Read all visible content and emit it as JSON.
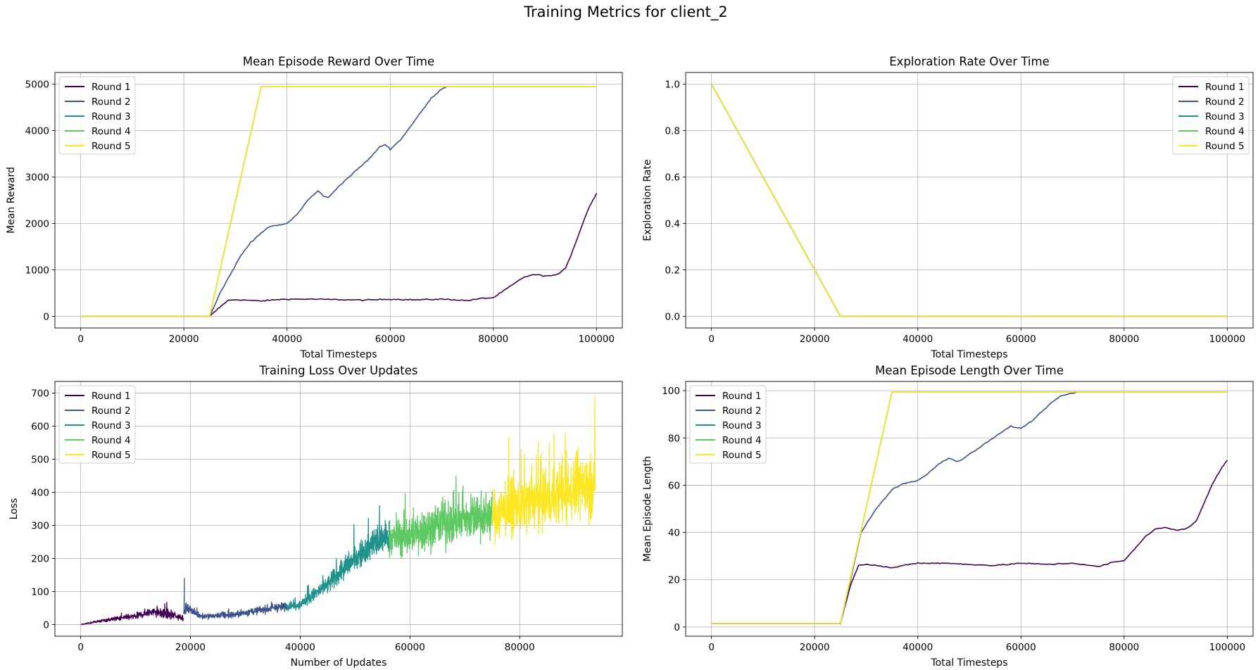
{
  "suptitle": "Training Metrics for client_2",
  "colors": {
    "round_1": "#440154",
    "round_2": "#3b528b",
    "round_3": "#21918c",
    "round_4": "#5ec962",
    "round_5": "#fde725"
  },
  "chart_data": [
    {
      "type": "line",
      "title": "Mean Episode Reward Over Time",
      "xlabel": "Total Timesteps",
      "ylabel": "Mean Reward",
      "xlim": [
        -5000,
        105000
      ],
      "ylim": [
        -250,
        5250
      ],
      "xticks": [
        0,
        20000,
        40000,
        60000,
        80000,
        100000
      ],
      "yticks": [
        0,
        1000,
        2000,
        3000,
        4000,
        5000
      ],
      "grid": true,
      "legend": "upper-left",
      "series": [
        {
          "name": "Round 1",
          "x": [
            0,
            25000,
            27000,
            28500,
            30000,
            32000,
            35000,
            38000,
            40000,
            45000,
            50000,
            55000,
            60000,
            65000,
            70000,
            72000,
            75000,
            78000,
            80000,
            82000,
            84000,
            86000,
            88000,
            90000,
            92000,
            93000,
            94000,
            95000,
            96000,
            97000,
            98000,
            99000,
            100000
          ],
          "y": [
            0,
            0,
            200,
            340,
            360,
            350,
            330,
            360,
            370,
            370,
            360,
            350,
            370,
            355,
            370,
            360,
            340,
            390,
            400,
            550,
            700,
            850,
            900,
            870,
            880,
            950,
            1050,
            1300,
            1600,
            1900,
            2200,
            2450,
            2650
          ]
        },
        {
          "name": "Round 2",
          "x": [
            0,
            25000,
            27000,
            29000,
            31000,
            33000,
            35000,
            37000,
            38000,
            40000,
            42000,
            44000,
            46000,
            47000,
            48000,
            50000,
            52000,
            54000,
            56000,
            58000,
            59000,
            60000,
            62000,
            64000,
            66000,
            68000,
            70000,
            71000,
            100000
          ],
          "y": [
            0,
            0,
            500,
            900,
            1300,
            1600,
            1800,
            1950,
            1950,
            2000,
            2200,
            2500,
            2700,
            2600,
            2550,
            2800,
            3000,
            3200,
            3400,
            3650,
            3700,
            3600,
            3800,
            4100,
            4400,
            4700,
            4900,
            4950,
            4950
          ]
        },
        {
          "name": "Round 3",
          "x": [
            0,
            25000,
            35000,
            100000
          ],
          "y": [
            0,
            0,
            4950,
            4950
          ]
        },
        {
          "name": "Round 4",
          "x": [
            0,
            25000,
            35000,
            100000
          ],
          "y": [
            0,
            0,
            4950,
            4950
          ]
        },
        {
          "name": "Round 5",
          "x": [
            0,
            25000,
            35000,
            100000
          ],
          "y": [
            0,
            0,
            4950,
            4950
          ]
        }
      ]
    },
    {
      "type": "line",
      "title": "Exploration Rate Over Time",
      "xlabel": "Total Timesteps",
      "ylabel": "Exploration Rate",
      "xlim": [
        -5000,
        105000
      ],
      "ylim": [
        -0.05,
        1.05
      ],
      "xticks": [
        0,
        20000,
        40000,
        60000,
        80000,
        100000
      ],
      "yticks": [
        0.0,
        0.2,
        0.4,
        0.6,
        0.8,
        1.0
      ],
      "ytick_labels": [
        "0.0",
        "0.2",
        "0.4",
        "0.6",
        "0.8",
        "1.0"
      ],
      "grid": true,
      "legend": "upper-right",
      "series": [
        {
          "name": "Round 1",
          "x": [
            0,
            25000,
            100000
          ],
          "y": [
            1.0,
            0.0,
            0.0
          ]
        },
        {
          "name": "Round 2",
          "x": [
            0,
            25000,
            100000
          ],
          "y": [
            1.0,
            0.0,
            0.0
          ]
        },
        {
          "name": "Round 3",
          "x": [
            0,
            25000,
            100000
          ],
          "y": [
            1.0,
            0.0,
            0.0
          ]
        },
        {
          "name": "Round 4",
          "x": [
            0,
            25000,
            100000
          ],
          "y": [
            1.0,
            0.0,
            0.0
          ]
        },
        {
          "name": "Round 5",
          "x": [
            0,
            25000,
            100000
          ],
          "y": [
            1.0,
            0.0,
            0.0
          ]
        }
      ]
    },
    {
      "type": "line",
      "title": "Training Loss Over Updates",
      "xlabel": "Number of Updates",
      "ylabel": "Loss",
      "xlim": [
        -4700,
        98700
      ],
      "ylim": [
        -35,
        735
      ],
      "xticks": [
        0,
        20000,
        40000,
        60000,
        80000
      ],
      "yticks": [
        0,
        100,
        200,
        300,
        400,
        500,
        600,
        700
      ],
      "grid": true,
      "legend": "upper-left",
      "series": [
        {
          "name": "Round 1",
          "x_range": [
            0,
            18750
          ],
          "noise": [
            [
              0,
              0,
              1
            ],
            [
              5000,
              15,
              10
            ],
            [
              10000,
              25,
              15
            ],
            [
              13000,
              40,
              25
            ],
            [
              16000,
              30,
              25
            ],
            [
              18750,
              22,
              15
            ]
          ]
        },
        {
          "name": "Round 2",
          "x_range": [
            18750,
            37500
          ],
          "noise": [
            [
              18750,
              30,
              20
            ],
            [
              19200,
              50,
              25
            ],
            [
              22000,
              25,
              15
            ],
            [
              28000,
              30,
              18
            ],
            [
              33000,
              45,
              20
            ],
            [
              37500,
              55,
              25
            ]
          ]
        },
        {
          "name": "Round 3",
          "x_range": [
            37500,
            56250
          ],
          "noise": [
            [
              37500,
              55,
              20
            ],
            [
              40000,
              60,
              25
            ],
            [
              45000,
              120,
              50
            ],
            [
              50000,
              200,
              70
            ],
            [
              53000,
              240,
              80
            ],
            [
              56250,
              270,
              90
            ]
          ]
        },
        {
          "name": "Round 4",
          "x_range": [
            56250,
            75000
          ],
          "noise": [
            [
              56250,
              260,
              100
            ],
            [
              60000,
              270,
              110
            ],
            [
              65000,
              300,
              120
            ],
            [
              70000,
              320,
              120
            ],
            [
              75000,
              330,
              120
            ]
          ]
        },
        {
          "name": "Round 5",
          "x_range": [
            75000,
            93750
          ],
          "noise": [
            [
              75000,
              330,
              140
            ],
            [
              80000,
              360,
              150
            ],
            [
              85000,
              380,
              160
            ],
            [
              90000,
              410,
              170
            ],
            [
              93750,
              430,
              180
            ]
          ]
        }
      ]
    },
    {
      "type": "line",
      "title": "Mean Episode Length Over Time",
      "xlabel": "Total Timesteps",
      "ylabel": "Mean Episode Length",
      "xlim": [
        -5000,
        105000
      ],
      "ylim": [
        -3.9,
        103.9
      ],
      "xticks": [
        0,
        20000,
        40000,
        60000,
        80000,
        100000
      ],
      "yticks": [
        0,
        20,
        40,
        60,
        80,
        100
      ],
      "grid": true,
      "legend": "upper-left",
      "series": [
        {
          "name": "Round 1",
          "x": [
            0,
            25000,
            27000,
            28500,
            30000,
            32000,
            35000,
            38000,
            40000,
            45000,
            50000,
            55000,
            60000,
            65000,
            70000,
            72000,
            75000,
            78000,
            80000,
            82000,
            84000,
            86000,
            88000,
            90000,
            92000,
            93000,
            94000,
            95000,
            96000,
            97000,
            98000,
            99000,
            100000
          ],
          "y": [
            1.5,
            1.5,
            18,
            26,
            26.5,
            26,
            25,
            26.5,
            27,
            27,
            26.5,
            26,
            27,
            26.5,
            27,
            26.5,
            25.5,
            27.5,
            28,
            33,
            38,
            41.5,
            42,
            41,
            41.5,
            43,
            45,
            50,
            55,
            60,
            64,
            67.5,
            70.5
          ]
        },
        {
          "name": "Round 2",
          "x": [
            0,
            25000,
            27000,
            29000,
            31000,
            33000,
            35000,
            37000,
            38000,
            40000,
            42000,
            44000,
            46000,
            47000,
            48000,
            50000,
            52000,
            54000,
            56000,
            58000,
            59000,
            60000,
            62000,
            64000,
            66000,
            68000,
            70000,
            71000,
            100000
          ],
          "y": [
            1.5,
            1.5,
            20,
            40,
            47,
            53,
            58,
            60.5,
            61,
            62,
            65,
            69,
            71.5,
            70.5,
            70,
            73,
            76,
            79,
            82,
            85,
            84.5,
            84,
            87,
            91,
            95,
            98,
            99,
            99.5,
            99.5
          ]
        },
        {
          "name": "Round 3",
          "x": [
            0,
            25000,
            35000,
            100000
          ],
          "y": [
            1.5,
            1.5,
            99.5,
            99.5
          ]
        },
        {
          "name": "Round 4",
          "x": [
            0,
            25000,
            35000,
            100000
          ],
          "y": [
            1.5,
            1.5,
            99.5,
            99.5
          ]
        },
        {
          "name": "Round 5",
          "x": [
            0,
            25000,
            35000,
            100000
          ],
          "y": [
            1.5,
            1.5,
            99.5,
            99.5
          ]
        }
      ]
    }
  ]
}
